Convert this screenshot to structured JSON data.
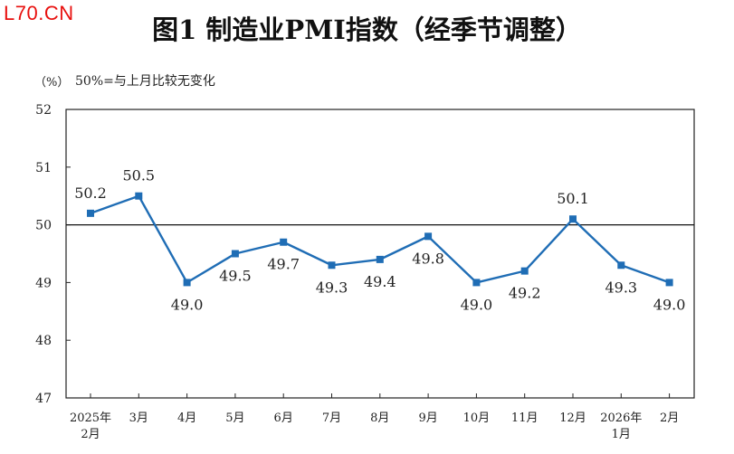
{
  "watermark": "L70.CN",
  "chart_data": {
    "type": "line",
    "title": "图1  制造业PMI指数（经季节调整）",
    "unit_label": "（%）",
    "reference_note": "50%=与上月比较无变化",
    "ylim": [
      47,
      52
    ],
    "yticks": [
      "47",
      "48",
      "49",
      "50",
      "51",
      "52"
    ],
    "reference_line": 50,
    "categories": [
      [
        "2025年",
        "2月"
      ],
      [
        "3月"
      ],
      [
        "4月"
      ],
      [
        "5月"
      ],
      [
        "6月"
      ],
      [
        "7月"
      ],
      [
        "8月"
      ],
      [
        "9月"
      ],
      [
        "10月"
      ],
      [
        "11月"
      ],
      [
        "12月"
      ],
      [
        "2026年",
        "1月"
      ],
      [
        "2月"
      ]
    ],
    "values": [
      50.2,
      50.5,
      49.0,
      49.5,
      49.7,
      49.3,
      49.4,
      49.8,
      49.0,
      49.2,
      50.1,
      49.3,
      49.0
    ],
    "data_labels": [
      "50.2",
      "50.5",
      "49.0",
      "49.5",
      "49.7",
      "49.3",
      "49.4",
      "49.8",
      "49.0",
      "49.2",
      "50.1",
      "49.3",
      "49.0"
    ],
    "label_position": [
      "above",
      "above",
      "below",
      "below",
      "below",
      "below",
      "below",
      "below",
      "below",
      "below",
      "above",
      "below",
      "below"
    ],
    "line_color": "#1f6db5",
    "marker_color": "#1f6db5",
    "grid": false
  }
}
